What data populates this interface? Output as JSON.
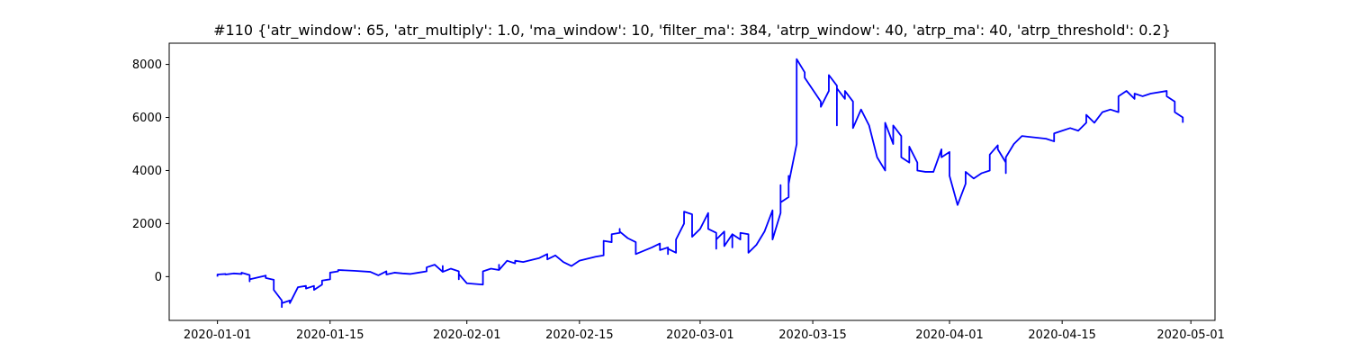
{
  "chart_data": {
    "type": "line",
    "title": "#110 {'atr_window': 65, 'atr_multiply': 1.0, 'ma_window': 10, 'filter_ma': 384, 'atrp_window': 40, 'atrp_ma': 40, 'atrp_threshold': 0.2}",
    "xlabel": "",
    "ylabel": "",
    "x_tick_labels": [
      "2020-01-01",
      "2020-01-15",
      "2020-02-01",
      "2020-02-15",
      "2020-03-01",
      "2020-03-15",
      "2020-04-01",
      "2020-04-15",
      "2020-05-01"
    ],
    "x_tick_values": [
      "2020-01-01",
      "2020-01-15",
      "2020-02-01",
      "2020-02-15",
      "2020-03-01",
      "2020-03-15",
      "2020-04-01",
      "2020-04-15",
      "2020-05-01"
    ],
    "y_ticks": [
      0,
      2000,
      4000,
      6000,
      8000
    ],
    "xlim": [
      "2019-12-26",
      "2020-05-04"
    ],
    "ylim": [
      -1650,
      8800
    ],
    "grid": false,
    "series": [
      {
        "color": "#0000ff",
        "points": [
          [
            "2020-01-01",
            0
          ],
          [
            "2020-01-01",
            80
          ],
          [
            "2020-01-02",
            100
          ],
          [
            "2020-01-02",
            80
          ],
          [
            "2020-01-03",
            120
          ],
          [
            "2020-01-04",
            100
          ],
          [
            "2020-01-04",
            150
          ],
          [
            "2020-01-05",
            60
          ],
          [
            "2020-01-05",
            -180
          ],
          [
            "2020-01-05",
            30
          ],
          [
            "2020-01-05",
            -100
          ],
          [
            "2020-01-07",
            40
          ],
          [
            "2020-01-07",
            -50
          ],
          [
            "2020-01-08",
            -120
          ],
          [
            "2020-01-08",
            -250
          ],
          [
            "2020-01-08",
            -500
          ],
          [
            "2020-01-09",
            -900
          ],
          [
            "2020-01-09",
            -1150
          ],
          [
            "2020-01-09",
            -1000
          ],
          [
            "2020-01-10",
            -900
          ],
          [
            "2020-01-10",
            -1000
          ],
          [
            "2020-01-11",
            -400
          ],
          [
            "2020-01-12",
            -350
          ],
          [
            "2020-01-12",
            -450
          ],
          [
            "2020-01-13",
            -350
          ],
          [
            "2020-01-13",
            -500
          ],
          [
            "2020-01-14",
            -300
          ],
          [
            "2020-01-14",
            -150
          ],
          [
            "2020-01-15",
            -100
          ],
          [
            "2020-01-15",
            150
          ],
          [
            "2020-01-16",
            200
          ],
          [
            "2020-01-16",
            250
          ],
          [
            "2020-01-18",
            220
          ],
          [
            "2020-01-20",
            180
          ],
          [
            "2020-01-21",
            50
          ],
          [
            "2020-01-22",
            200
          ],
          [
            "2020-01-22",
            80
          ],
          [
            "2020-01-23",
            150
          ],
          [
            "2020-01-24",
            120
          ],
          [
            "2020-01-25",
            100
          ],
          [
            "2020-01-26",
            150
          ],
          [
            "2020-01-27",
            200
          ],
          [
            "2020-01-27",
            350
          ],
          [
            "2020-01-28",
            450
          ],
          [
            "2020-01-29",
            180
          ],
          [
            "2020-01-29",
            400
          ],
          [
            "2020-01-29",
            180
          ],
          [
            "2020-01-30",
            300
          ],
          [
            "2020-01-31",
            200
          ],
          [
            "2020-01-31",
            -100
          ],
          [
            "2020-01-31",
            100
          ],
          [
            "2020-02-01",
            -250
          ],
          [
            "2020-02-03",
            -300
          ],
          [
            "2020-02-03",
            200
          ],
          [
            "2020-02-04",
            300
          ],
          [
            "2020-02-05",
            250
          ],
          [
            "2020-02-05",
            450
          ],
          [
            "2020-02-05",
            250
          ],
          [
            "2020-02-06",
            600
          ],
          [
            "2020-02-07",
            500
          ],
          [
            "2020-02-07",
            600
          ],
          [
            "2020-02-08",
            550
          ],
          [
            "2020-02-10",
            700
          ],
          [
            "2020-02-11",
            850
          ],
          [
            "2020-02-11",
            650
          ],
          [
            "2020-02-12",
            800
          ],
          [
            "2020-02-13",
            550
          ],
          [
            "2020-02-14",
            400
          ],
          [
            "2020-02-15",
            600
          ],
          [
            "2020-02-17",
            750
          ],
          [
            "2020-02-18",
            800
          ],
          [
            "2020-02-18",
            1200
          ],
          [
            "2020-02-18",
            1350
          ],
          [
            "2020-02-19",
            1300
          ],
          [
            "2020-02-19",
            1600
          ],
          [
            "2020-02-20",
            1650
          ],
          [
            "2020-02-20",
            1800
          ],
          [
            "2020-02-20",
            1700
          ],
          [
            "2020-02-21",
            1450
          ],
          [
            "2020-02-22",
            1300
          ],
          [
            "2020-02-22",
            850
          ],
          [
            "2020-02-24",
            1100
          ],
          [
            "2020-02-25",
            1250
          ],
          [
            "2020-02-25",
            1000
          ],
          [
            "2020-02-26",
            1100
          ],
          [
            "2020-02-26",
            850
          ],
          [
            "2020-02-26",
            1050
          ],
          [
            "2020-02-27",
            900
          ],
          [
            "2020-02-27",
            1400
          ],
          [
            "2020-02-28",
            2000
          ],
          [
            "2020-02-28",
            2250
          ],
          [
            "2020-02-28",
            2450
          ],
          [
            "2020-02-29",
            2350
          ],
          [
            "2020-02-29",
            1500
          ],
          [
            "2020-03-01",
            1800
          ],
          [
            "2020-03-02",
            2400
          ],
          [
            "2020-03-02",
            1800
          ],
          [
            "2020-03-03",
            1650
          ],
          [
            "2020-03-03",
            1050
          ],
          [
            "2020-03-03",
            1400
          ],
          [
            "2020-03-04",
            1700
          ],
          [
            "2020-03-04",
            1150
          ],
          [
            "2020-03-05",
            1600
          ],
          [
            "2020-03-05",
            1100
          ],
          [
            "2020-03-05",
            1600
          ],
          [
            "2020-03-06",
            1400
          ],
          [
            "2020-03-06",
            1650
          ],
          [
            "2020-03-07",
            1600
          ],
          [
            "2020-03-07",
            900
          ],
          [
            "2020-03-08",
            1200
          ],
          [
            "2020-03-09",
            1700
          ],
          [
            "2020-03-10",
            2500
          ],
          [
            "2020-03-10",
            1800
          ],
          [
            "2020-03-10",
            1600
          ],
          [
            "2020-03-10",
            1400
          ],
          [
            "2020-03-11",
            2400
          ],
          [
            "2020-03-11",
            3200
          ],
          [
            "2020-03-11",
            3450
          ],
          [
            "2020-03-11",
            2800
          ],
          [
            "2020-03-12",
            3000
          ],
          [
            "2020-03-12",
            3800
          ],
          [
            "2020-03-12",
            3500
          ],
          [
            "2020-03-13",
            5000
          ],
          [
            "2020-03-13",
            5400
          ],
          [
            "2020-03-13",
            6800
          ],
          [
            "2020-03-13",
            8200
          ],
          [
            "2020-03-14",
            7700
          ],
          [
            "2020-03-14",
            7500
          ],
          [
            "2020-03-16",
            6600
          ],
          [
            "2020-03-16",
            6400
          ],
          [
            "2020-03-17",
            7000
          ],
          [
            "2020-03-17",
            7600
          ],
          [
            "2020-03-18",
            7200
          ],
          [
            "2020-03-18",
            5700
          ],
          [
            "2020-03-18",
            7100
          ],
          [
            "2020-03-19",
            6700
          ],
          [
            "2020-03-19",
            7000
          ],
          [
            "2020-03-20",
            6600
          ],
          [
            "2020-03-20",
            5600
          ],
          [
            "2020-03-21",
            6300
          ],
          [
            "2020-03-22",
            5700
          ],
          [
            "2020-03-23",
            4500
          ],
          [
            "2020-03-24",
            4000
          ],
          [
            "2020-03-24",
            4500
          ],
          [
            "2020-03-24",
            5500
          ],
          [
            "2020-03-24",
            5800
          ],
          [
            "2020-03-25",
            5000
          ],
          [
            "2020-03-25",
            5700
          ],
          [
            "2020-03-26",
            5300
          ],
          [
            "2020-03-26",
            4500
          ],
          [
            "2020-03-27",
            4300
          ],
          [
            "2020-03-27",
            4900
          ],
          [
            "2020-03-28",
            4300
          ],
          [
            "2020-03-28",
            4000
          ],
          [
            "2020-03-29",
            3950
          ],
          [
            "2020-03-30",
            3950
          ],
          [
            "2020-03-31",
            4800
          ],
          [
            "2020-03-31",
            4500
          ],
          [
            "2020-04-01",
            4700
          ],
          [
            "2020-04-01",
            3800
          ],
          [
            "2020-04-02",
            2700
          ],
          [
            "2020-04-03",
            3500
          ],
          [
            "2020-04-03",
            3950
          ],
          [
            "2020-04-04",
            3700
          ],
          [
            "2020-04-05",
            3900
          ],
          [
            "2020-04-06",
            4000
          ],
          [
            "2020-04-06",
            4000
          ],
          [
            "2020-04-06",
            4600
          ],
          [
            "2020-04-07",
            4950
          ],
          [
            "2020-04-07",
            4800
          ],
          [
            "2020-04-08",
            4300
          ],
          [
            "2020-04-08",
            3900
          ],
          [
            "2020-04-08",
            4500
          ],
          [
            "2020-04-09",
            5000
          ],
          [
            "2020-04-10",
            5300
          ],
          [
            "2020-04-13",
            5200
          ],
          [
            "2020-04-14",
            5100
          ],
          [
            "2020-04-14",
            5400
          ],
          [
            "2020-04-15",
            5500
          ],
          [
            "2020-04-16",
            5600
          ],
          [
            "2020-04-17",
            5500
          ],
          [
            "2020-04-18",
            5800
          ],
          [
            "2020-04-18",
            6100
          ],
          [
            "2020-04-19",
            5800
          ],
          [
            "2020-04-20",
            6200
          ],
          [
            "2020-04-21",
            6300
          ],
          [
            "2020-04-22",
            6200
          ],
          [
            "2020-04-22",
            6800
          ],
          [
            "2020-04-23",
            7000
          ],
          [
            "2020-04-24",
            6700
          ],
          [
            "2020-04-24",
            6900
          ],
          [
            "2020-04-25",
            6800
          ],
          [
            "2020-04-26",
            6900
          ],
          [
            "2020-04-28",
            7000
          ],
          [
            "2020-04-28",
            6800
          ],
          [
            "2020-04-29",
            6600
          ],
          [
            "2020-04-29",
            6200
          ],
          [
            "2020-04-30",
            6000
          ],
          [
            "2020-04-30",
            5800
          ]
        ]
      }
    ]
  }
}
